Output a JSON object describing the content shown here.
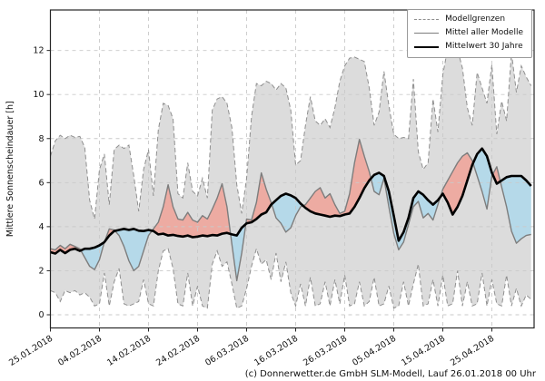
{
  "footer": {
    "copyright": "(c) Donnerwetter.de GmbH SLM-Modell, Lauf 26.01.2018 00 Uhr"
  },
  "chart_data": {
    "type": "line",
    "title": "",
    "xlabel": "",
    "ylabel": "Mittlere Sonnenscheindauer [h]",
    "yticks": [
      0,
      2,
      4,
      6,
      8,
      10,
      12
    ],
    "ylim": [
      -0.6,
      13.9
    ],
    "grid": true,
    "legend_position": "upper right",
    "start_date": "25.01.2018",
    "days": 99,
    "x_tick_days": [
      0,
      10,
      20,
      30,
      40,
      50,
      60,
      70,
      80,
      90
    ],
    "x_tick_labels": [
      "25.01.2018",
      "04.02.2018",
      "14.02.2018",
      "24.02.2018",
      "06.03.2018",
      "16.03.2018",
      "26.03.2018",
      "05.04.2018",
      "15.04.2018",
      "25.04.2018"
    ],
    "legend": [
      {
        "label": "Modellgrenzen",
        "style": "dashed-gray"
      },
      {
        "label": "Mittel aller Modelle",
        "style": "solid-gray"
      },
      {
        "label": "Mittelwert 30 Jahre",
        "style": "solid-black-bold"
      }
    ],
    "colors": {
      "band_fill": "#dcdcdc",
      "band_edge": "#8f8f8f",
      "mean_line": "#7d7d7d",
      "climate_line": "#000000",
      "above_fill": "#edaba2",
      "below_fill": "#b5d9e9",
      "grid": "#c9c9c9",
      "box": "#262626",
      "text": "#111111"
    },
    "series": [
      {
        "name": "Modellgrenzen (Maximum)",
        "values": [
          7.2,
          7.9,
          8.15,
          8.0,
          8.15,
          8.05,
          8.1,
          7.6,
          5.2,
          4.35,
          6.6,
          7.3,
          5.0,
          7.5,
          7.7,
          7.55,
          7.7,
          6.3,
          4.7,
          6.6,
          7.5,
          5.4,
          8.4,
          9.6,
          9.5,
          8.9,
          5.5,
          5.3,
          6.9,
          5.6,
          5.4,
          6.2,
          5.3,
          9.3,
          9.8,
          9.9,
          9.6,
          8.5,
          5.9,
          4.6,
          6.2,
          9.0,
          10.5,
          10.4,
          10.6,
          10.5,
          10.2,
          10.5,
          10.3,
          9.3,
          6.8,
          7.0,
          8.6,
          9.9,
          8.8,
          8.6,
          8.9,
          8.5,
          9.4,
          10.6,
          11.3,
          11.65,
          11.7,
          11.6,
          11.5,
          10.3,
          8.6,
          9.2,
          11.05,
          9.5,
          8.2,
          8.0,
          8.05,
          8.0,
          10.7,
          7.4,
          6.6,
          6.9,
          9.8,
          8.3,
          10.9,
          12.1,
          11.9,
          12.05,
          11.2,
          9.4,
          8.6,
          11.0,
          10.3,
          9.6,
          11.35,
          8.2,
          9.7,
          8.8,
          11.9,
          10.1,
          11.3,
          10.8,
          10.4
        ]
      },
      {
        "name": "Modellgrenzen (Minimum)",
        "values": [
          1.1,
          1.0,
          0.6,
          1.1,
          1.0,
          1.1,
          0.9,
          1.0,
          0.8,
          0.4,
          0.5,
          1.9,
          0.4,
          1.5,
          2.1,
          0.5,
          0.4,
          0.5,
          0.6,
          1.6,
          0.5,
          0.4,
          2.0,
          2.9,
          3.0,
          2.1,
          0.5,
          0.4,
          1.9,
          0.4,
          1.3,
          0.4,
          0.3,
          2.3,
          2.9,
          2.2,
          2.4,
          1.4,
          0.3,
          0.4,
          1.2,
          2.2,
          3.0,
          2.3,
          2.5,
          1.6,
          2.8,
          1.5,
          2.4,
          1.0,
          0.4,
          1.4,
          0.4,
          1.7,
          0.4,
          0.5,
          1.5,
          0.4,
          1.6,
          0.5,
          1.8,
          0.4,
          0.5,
          1.5,
          0.4,
          0.6,
          1.7,
          0.4,
          0.5,
          1.3,
          0.3,
          0.4,
          1.5,
          0.4,
          1.4,
          2.3,
          0.4,
          0.5,
          1.6,
          0.4,
          1.8,
          0.4,
          0.5,
          2.0,
          0.4,
          1.5,
          0.4,
          0.5,
          1.9,
          0.4,
          1.6,
          0.5,
          0.4,
          1.8,
          0.4,
          1.2,
          0.4,
          0.9,
          0.7
        ]
      },
      {
        "name": "Mittel aller Modelle",
        "values": [
          3.0,
          2.95,
          3.15,
          3.0,
          3.2,
          3.1,
          3.0,
          2.6,
          2.2,
          2.05,
          2.5,
          3.3,
          3.9,
          3.85,
          3.6,
          3.1,
          2.45,
          2.0,
          2.2,
          2.9,
          3.6,
          3.9,
          4.2,
          4.9,
          5.9,
          4.9,
          4.35,
          4.3,
          4.65,
          4.3,
          4.2,
          4.5,
          4.35,
          4.8,
          5.3,
          5.95,
          4.9,
          3.2,
          1.55,
          2.8,
          4.35,
          4.3,
          5.1,
          6.44,
          5.7,
          5.1,
          4.4,
          4.15,
          3.75,
          3.95,
          4.5,
          4.9,
          5.0,
          5.3,
          5.6,
          5.77,
          5.3,
          5.5,
          5.0,
          4.6,
          4.7,
          5.5,
          6.9,
          7.96,
          7.2,
          6.5,
          5.6,
          5.45,
          6.2,
          4.9,
          3.7,
          2.95,
          3.3,
          4.1,
          4.9,
          5.15,
          4.4,
          4.6,
          4.3,
          5.0,
          5.7,
          6.1,
          6.5,
          6.9,
          7.2,
          7.35,
          7.0,
          6.3,
          5.6,
          4.8,
          6.3,
          6.72,
          5.8,
          4.9,
          3.8,
          3.25,
          3.45,
          3.6,
          3.65
        ]
      },
      {
        "name": "Mittelwert 30 Jahre",
        "values": [
          2.84,
          2.78,
          2.95,
          2.8,
          2.95,
          3.0,
          2.9,
          3.0,
          3.0,
          3.05,
          3.15,
          3.3,
          3.6,
          3.8,
          3.85,
          3.9,
          3.85,
          3.9,
          3.82,
          3.8,
          3.85,
          3.8,
          3.65,
          3.68,
          3.6,
          3.63,
          3.58,
          3.55,
          3.6,
          3.52,
          3.55,
          3.6,
          3.57,
          3.62,
          3.6,
          3.68,
          3.72,
          3.65,
          3.6,
          3.95,
          4.15,
          4.2,
          4.35,
          4.55,
          4.65,
          5.0,
          5.2,
          5.4,
          5.5,
          5.42,
          5.3,
          5.05,
          4.85,
          4.7,
          4.6,
          4.55,
          4.5,
          4.45,
          4.5,
          4.48,
          4.55,
          4.6,
          4.9,
          5.3,
          5.75,
          6.1,
          6.35,
          6.45,
          6.3,
          5.6,
          4.5,
          3.36,
          3.75,
          4.4,
          5.3,
          5.6,
          5.45,
          5.2,
          5.0,
          5.2,
          5.5,
          5.1,
          4.55,
          4.9,
          5.4,
          6.1,
          6.8,
          7.3,
          7.55,
          7.2,
          6.45,
          5.95,
          6.1,
          6.25,
          6.3,
          6.3,
          6.3,
          6.1,
          5.85
        ]
      }
    ]
  }
}
